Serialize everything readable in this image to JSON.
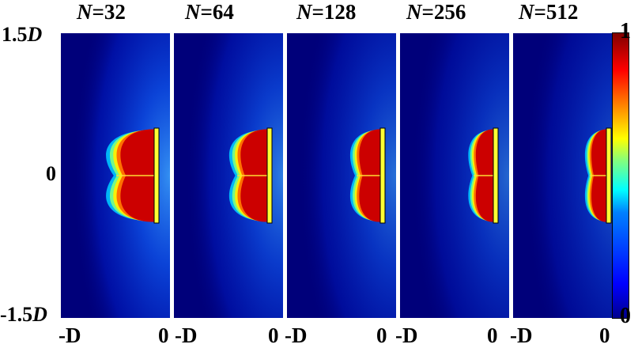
{
  "panels": [
    {
      "title_var": "N",
      "title_val": "=32",
      "spread": 1.0
    },
    {
      "title_var": "N",
      "title_val": "=64",
      "spread": 0.72
    },
    {
      "title_var": "N",
      "title_val": "=128",
      "spread": 0.5
    },
    {
      "title_var": "N",
      "title_val": "=256",
      "spread": 0.36
    },
    {
      "title_var": "N",
      "title_val": "=512",
      "spread": 0.26
    }
  ],
  "y_axis": {
    "top": "1.5",
    "top_unit": "D",
    "mid": "0",
    "bottom": "-1.5",
    "bottom_unit": "D"
  },
  "x_axis": {
    "left": "-D",
    "right": "0"
  },
  "colorbar": {
    "max": "1",
    "min": "0"
  },
  "colors": {
    "plate": "#ffff33",
    "background": "#00007a",
    "hot": "#cc0000"
  }
}
